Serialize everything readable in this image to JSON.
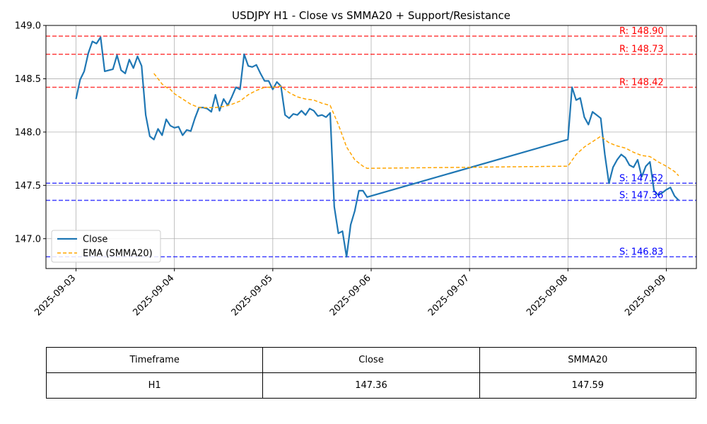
{
  "colors": {
    "close": "#1f77b4",
    "smma": "#ffa500",
    "resistance": "#ff0000",
    "support": "#0000ff",
    "grid": "#b0b0b0"
  },
  "chart_data": {
    "type": "line",
    "title": "USDJPY H1 - Close vs SMMA20 + Support/Resistance",
    "xlabel": "",
    "ylabel": "",
    "x_ticks": [
      "2025-09-03",
      "2025-09-04",
      "2025-09-05",
      "2025-09-06",
      "2025-09-07",
      "2025-09-08",
      "2025-09-09"
    ],
    "xlim": [
      "2025-09-02 16:40",
      "2025-09-09 07:20"
    ],
    "ylim": [
      146.72,
      149.0
    ],
    "y_ticks": [
      "147.0",
      "147.5",
      "148.0",
      "148.5",
      "149.0"
    ],
    "grid": true,
    "legend_position": "lower-left",
    "series": [
      {
        "name": "Close",
        "style": "solid",
        "points": [
          [
            "2025-09-03 00:00",
            148.31
          ],
          [
            "2025-09-03 01:00",
            148.49
          ],
          [
            "2025-09-03 02:00",
            148.57
          ],
          [
            "2025-09-03 03:00",
            148.74
          ],
          [
            "2025-09-03 04:00",
            148.85
          ],
          [
            "2025-09-03 05:00",
            148.83
          ],
          [
            "2025-09-03 06:00",
            148.89
          ],
          [
            "2025-09-03 07:00",
            148.57
          ],
          [
            "2025-09-03 08:00",
            148.58
          ],
          [
            "2025-09-03 09:00",
            148.59
          ],
          [
            "2025-09-03 10:00",
            148.72
          ],
          [
            "2025-09-03 11:00",
            148.58
          ],
          [
            "2025-09-03 12:00",
            148.55
          ],
          [
            "2025-09-03 13:00",
            148.68
          ],
          [
            "2025-09-03 14:00",
            148.6
          ],
          [
            "2025-09-03 15:00",
            148.71
          ],
          [
            "2025-09-03 16:00",
            148.62
          ],
          [
            "2025-09-03 17:00",
            148.16
          ],
          [
            "2025-09-03 18:00",
            147.96
          ],
          [
            "2025-09-03 19:00",
            147.93
          ],
          [
            "2025-09-03 20:00",
            148.03
          ],
          [
            "2025-09-03 21:00",
            147.97
          ],
          [
            "2025-09-03 22:00",
            148.12
          ],
          [
            "2025-09-03 23:00",
            148.06
          ],
          [
            "2025-09-04 00:00",
            148.04
          ],
          [
            "2025-09-04 01:00",
            148.05
          ],
          [
            "2025-09-04 02:00",
            147.97
          ],
          [
            "2025-09-04 03:00",
            148.02
          ],
          [
            "2025-09-04 04:00",
            148.01
          ],
          [
            "2025-09-04 05:00",
            148.13
          ],
          [
            "2025-09-04 06:00",
            148.23
          ],
          [
            "2025-09-04 07:00",
            148.23
          ],
          [
            "2025-09-04 08:00",
            148.22
          ],
          [
            "2025-09-04 09:00",
            148.19
          ],
          [
            "2025-09-04 10:00",
            148.35
          ],
          [
            "2025-09-04 11:00",
            148.2
          ],
          [
            "2025-09-04 12:00",
            148.31
          ],
          [
            "2025-09-04 13:00",
            148.25
          ],
          [
            "2025-09-04 14:00",
            148.33
          ],
          [
            "2025-09-04 15:00",
            148.42
          ],
          [
            "2025-09-04 16:00",
            148.4
          ],
          [
            "2025-09-04 17:00",
            148.73
          ],
          [
            "2025-09-04 18:00",
            148.62
          ],
          [
            "2025-09-04 19:00",
            148.61
          ],
          [
            "2025-09-04 20:00",
            148.63
          ],
          [
            "2025-09-04 21:00",
            148.55
          ],
          [
            "2025-09-04 22:00",
            148.48
          ],
          [
            "2025-09-04 23:00",
            148.48
          ],
          [
            "2025-09-05 00:00",
            148.4
          ],
          [
            "2025-09-05 01:00",
            148.47
          ],
          [
            "2025-09-05 02:00",
            148.43
          ],
          [
            "2025-09-05 03:00",
            148.16
          ],
          [
            "2025-09-05 04:00",
            148.13
          ],
          [
            "2025-09-05 05:00",
            148.17
          ],
          [
            "2025-09-05 06:00",
            148.16
          ],
          [
            "2025-09-05 07:00",
            148.2
          ],
          [
            "2025-09-05 08:00",
            148.16
          ],
          [
            "2025-09-05 09:00",
            148.22
          ],
          [
            "2025-09-05 10:00",
            148.2
          ],
          [
            "2025-09-05 11:00",
            148.15
          ],
          [
            "2025-09-05 12:00",
            148.16
          ],
          [
            "2025-09-05 13:00",
            148.14
          ],
          [
            "2025-09-05 14:00",
            148.18
          ],
          [
            "2025-09-05 15:00",
            147.3
          ],
          [
            "2025-09-05 16:00",
            147.05
          ],
          [
            "2025-09-05 17:00",
            147.07
          ],
          [
            "2025-09-05 18:00",
            146.83
          ],
          [
            "2025-09-05 19:00",
            147.13
          ],
          [
            "2025-09-05 20:00",
            147.26
          ],
          [
            "2025-09-05 21:00",
            147.45
          ],
          [
            "2025-09-05 22:00",
            147.45
          ],
          [
            "2025-09-05 23:00",
            147.39
          ],
          [
            "2025-09-08 00:00",
            147.93
          ],
          [
            "2025-09-08 01:00",
            148.42
          ],
          [
            "2025-09-08 02:00",
            148.3
          ],
          [
            "2025-09-08 03:00",
            148.32
          ],
          [
            "2025-09-08 04:00",
            148.14
          ],
          [
            "2025-09-08 05:00",
            148.07
          ],
          [
            "2025-09-08 06:00",
            148.19
          ],
          [
            "2025-09-08 07:00",
            148.16
          ],
          [
            "2025-09-08 08:00",
            148.13
          ],
          [
            "2025-09-08 09:00",
            147.79
          ],
          [
            "2025-09-08 10:00",
            147.52
          ],
          [
            "2025-09-08 11:00",
            147.67
          ],
          [
            "2025-09-08 12:00",
            147.74
          ],
          [
            "2025-09-08 13:00",
            147.79
          ],
          [
            "2025-09-08 14:00",
            147.76
          ],
          [
            "2025-09-08 15:00",
            147.69
          ],
          [
            "2025-09-08 16:00",
            147.67
          ],
          [
            "2025-09-08 17:00",
            147.74
          ],
          [
            "2025-09-08 18:00",
            147.58
          ],
          [
            "2025-09-08 19:00",
            147.68
          ],
          [
            "2025-09-08 20:00",
            147.72
          ],
          [
            "2025-09-08 21:00",
            147.45
          ],
          [
            "2025-09-08 22:00",
            147.41
          ],
          [
            "2025-09-08 23:00",
            147.43
          ],
          [
            "2025-09-09 00:00",
            147.46
          ],
          [
            "2025-09-09 01:00",
            147.48
          ],
          [
            "2025-09-09 02:00",
            147.4
          ],
          [
            "2025-09-09 03:00",
            147.36
          ]
        ]
      },
      {
        "name": "EMA (SMMA20)",
        "style": "dashed",
        "points": [
          [
            "2025-09-03 19:00",
            148.55
          ],
          [
            "2025-09-03 20:00",
            148.5
          ],
          [
            "2025-09-03 21:00",
            148.45
          ],
          [
            "2025-09-03 22:00",
            148.42
          ],
          [
            "2025-09-03 23:00",
            148.4
          ],
          [
            "2025-09-04 00:00",
            148.36
          ],
          [
            "2025-09-04 02:00",
            148.31
          ],
          [
            "2025-09-04 04:00",
            148.26
          ],
          [
            "2025-09-04 06:00",
            148.23
          ],
          [
            "2025-09-04 08:00",
            148.23
          ],
          [
            "2025-09-04 10:00",
            148.23
          ],
          [
            "2025-09-04 12:00",
            148.24
          ],
          [
            "2025-09-04 14:00",
            148.26
          ],
          [
            "2025-09-04 16:00",
            148.29
          ],
          [
            "2025-09-04 18:00",
            148.35
          ],
          [
            "2025-09-04 20:00",
            148.39
          ],
          [
            "2025-09-04 22:00",
            148.42
          ],
          [
            "2025-09-05 00:00",
            148.42
          ],
          [
            "2025-09-05 02:00",
            148.43
          ],
          [
            "2025-09-05 04:00",
            148.37
          ],
          [
            "2025-09-05 06:00",
            148.33
          ],
          [
            "2025-09-05 08:00",
            148.31
          ],
          [
            "2025-09-05 10:00",
            148.3
          ],
          [
            "2025-09-05 12:00",
            148.27
          ],
          [
            "2025-09-05 14:00",
            148.25
          ],
          [
            "2025-09-05 16:00",
            148.07
          ],
          [
            "2025-09-05 18:00",
            147.86
          ],
          [
            "2025-09-05 20:00",
            147.74
          ],
          [
            "2025-09-05 22:00",
            147.68
          ],
          [
            "2025-09-05 23:00",
            147.66
          ],
          [
            "2025-09-08 00:00",
            147.68
          ],
          [
            "2025-09-08 02:00",
            147.79
          ],
          [
            "2025-09-08 04:00",
            147.86
          ],
          [
            "2025-09-08 06:00",
            147.91
          ],
          [
            "2025-09-08 08:00",
            147.96
          ],
          [
            "2025-09-08 10:00",
            147.9
          ],
          [
            "2025-09-08 12:00",
            147.87
          ],
          [
            "2025-09-08 14:00",
            147.85
          ],
          [
            "2025-09-08 16:00",
            147.81
          ],
          [
            "2025-09-08 18:00",
            147.78
          ],
          [
            "2025-09-08 20:00",
            147.77
          ],
          [
            "2025-09-08 22:00",
            147.72
          ],
          [
            "2025-09-09 00:00",
            147.68
          ],
          [
            "2025-09-09 02:00",
            147.63
          ],
          [
            "2025-09-09 03:00",
            147.59
          ]
        ]
      }
    ],
    "levels": [
      {
        "kind": "resistance",
        "value": 148.9,
        "label": "R: 148.90"
      },
      {
        "kind": "resistance",
        "value": 148.73,
        "label": "R: 148.73"
      },
      {
        "kind": "resistance",
        "value": 148.42,
        "label": "R: 148.42"
      },
      {
        "kind": "support",
        "value": 147.52,
        "label": "S: 147.52"
      },
      {
        "kind": "support",
        "value": 147.36,
        "label": "S: 147.36"
      },
      {
        "kind": "support",
        "value": 146.83,
        "label": "S: 146.83"
      }
    ]
  },
  "table": {
    "headers": [
      "Timeframe",
      "Close",
      "SMMA20"
    ],
    "rows": [
      [
        "H1",
        "147.36",
        "147.59"
      ]
    ]
  }
}
